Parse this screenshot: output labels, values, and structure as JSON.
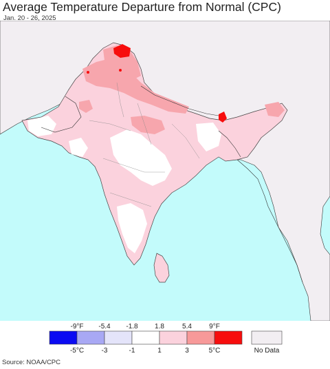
{
  "title": "Average Temperature Departure from Normal (CPC)",
  "subtitle": "Jan. 20 - 26, 2025",
  "source": "Source: NOAA/CPC",
  "legend": {
    "f_labels": [
      "-9°F",
      "-5.4",
      "-1.8",
      "1.8",
      "5.4",
      "9°F"
    ],
    "c_labels": [
      "-5°C",
      "-3",
      "-1",
      "1",
      "3",
      "5°C"
    ],
    "bins": [
      {
        "color": "#0b0bf2",
        "range": "< -5°C"
      },
      {
        "color": "#a8a8f4",
        "range": "-5 to -3"
      },
      {
        "color": "#e4e4fa",
        "range": "-3 to -1"
      },
      {
        "color": "#ffffff",
        "range": "-1 to 1"
      },
      {
        "color": "#fbd2dd",
        "range": "1 to 3"
      },
      {
        "color": "#f79999",
        "range": "3 to 5"
      },
      {
        "color": "#f70d0d",
        "range": "> 5°C"
      }
    ],
    "no_data_label": "No Data",
    "no_data_color": "#f2eef2"
  },
  "colors": {
    "ocean": "#c3fbfb",
    "no_data_land": "#f2eef2",
    "light_pink": "#fbd2dd",
    "medium_pink": "#f7a6ad",
    "red": "#f70d0d",
    "border": "#333333"
  }
}
